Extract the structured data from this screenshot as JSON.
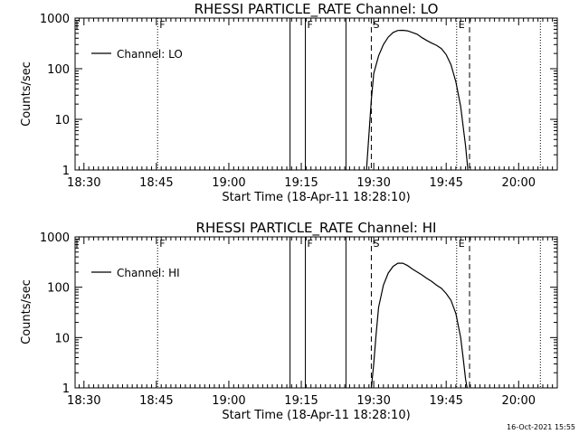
{
  "footer": {
    "date_stamp": "16-Oct-2021 15:55"
  },
  "chart_data": [
    {
      "type": "line",
      "title": "RHESSI PARTICLE_RATE Channel: LO",
      "xlabel": "Start Time (18-Apr-11 18:28:10)",
      "ylabel": "Counts/sec",
      "y_scale": "log",
      "ylim": [
        1,
        1000
      ],
      "xlim": [
        "18:28:10",
        "20:08:00"
      ],
      "x_ticks": [
        "18:30",
        "18:45",
        "19:00",
        "19:15",
        "19:30",
        "19:45",
        "20:00"
      ],
      "y_ticks": [
        "1",
        "10",
        "100",
        "1000"
      ],
      "legend": {
        "placement": "top-left",
        "entries": [
          "Channel: LO"
        ]
      },
      "series": [
        {
          "name": "Channel: LO",
          "x": [
            "19:28:30",
            "19:29:00",
            "19:29:30",
            "19:30:00",
            "19:31:00",
            "19:32:00",
            "19:33:00",
            "19:34:00",
            "19:35:00",
            "19:36:00",
            "19:37:00",
            "19:38:00",
            "19:39:00",
            "19:40:00",
            "19:41:00",
            "19:42:00",
            "19:43:00",
            "19:44:00",
            "19:45:00",
            "19:46:00",
            "19:47:00",
            "19:48:00",
            "19:49:00",
            "19:49:30"
          ],
          "y": [
            1,
            5,
            25,
            80,
            180,
            300,
            420,
            520,
            570,
            575,
            560,
            520,
            480,
            410,
            360,
            320,
            290,
            250,
            190,
            120,
            55,
            18,
            3,
            1
          ]
        }
      ],
      "annotations": [
        {
          "label": "F",
          "time": "18:45:15",
          "style": "dotted"
        },
        {
          "label": "",
          "time": "19:12:40",
          "style": "solid"
        },
        {
          "label": "F",
          "time": "19:15:50",
          "style": "solid"
        },
        {
          "label": "",
          "time": "19:24:15",
          "style": "solid"
        },
        {
          "label": "S",
          "time": "19:29:30",
          "style": "dashed"
        },
        {
          "label": "E",
          "time": "19:47:10",
          "style": "dotted"
        },
        {
          "label": "",
          "time": "19:49:50",
          "style": "dashed"
        },
        {
          "label": "",
          "time": "20:04:30",
          "style": "dotted"
        }
      ]
    },
    {
      "type": "line",
      "title": "RHESSI PARTICLE_RATE Channel: HI",
      "xlabel": "Start Time (18-Apr-11 18:28:10)",
      "ylabel": "Counts/sec",
      "y_scale": "log",
      "ylim": [
        1,
        1000
      ],
      "xlim": [
        "18:28:10",
        "20:08:00"
      ],
      "x_ticks": [
        "18:30",
        "18:45",
        "19:00",
        "19:15",
        "19:30",
        "19:45",
        "20:00"
      ],
      "y_ticks": [
        "1",
        "10",
        "100",
        "1000"
      ],
      "legend": {
        "placement": "top-left",
        "entries": [
          "Channel: HI"
        ]
      },
      "series": [
        {
          "name": "Channel: HI",
          "x": [
            "19:29:30",
            "19:30:00",
            "19:30:30",
            "19:31:00",
            "19:32:00",
            "19:33:00",
            "19:34:00",
            "19:35:00",
            "19:36:00",
            "19:37:00",
            "19:38:00",
            "19:39:00",
            "19:40:00",
            "19:41:00",
            "19:42:00",
            "19:43:00",
            "19:44:00",
            "19:45:00",
            "19:46:00",
            "19:47:00",
            "19:48:00",
            "19:48:30",
            "19:49:00",
            "19:49:20"
          ],
          "y": [
            1,
            3,
            12,
            40,
            110,
            190,
            260,
            300,
            300,
            270,
            230,
            200,
            175,
            150,
            130,
            110,
            95,
            75,
            55,
            30,
            10,
            4,
            1.5,
            1
          ]
        }
      ],
      "annotations": [
        {
          "label": "F",
          "time": "18:45:15",
          "style": "dotted"
        },
        {
          "label": "",
          "time": "19:12:40",
          "style": "solid"
        },
        {
          "label": "F",
          "time": "19:15:50",
          "style": "solid"
        },
        {
          "label": "",
          "time": "19:24:15",
          "style": "solid"
        },
        {
          "label": "S",
          "time": "19:29:30",
          "style": "dashed"
        },
        {
          "label": "E",
          "time": "19:47:10",
          "style": "dotted"
        },
        {
          "label": "",
          "time": "19:49:50",
          "style": "dashed"
        },
        {
          "label": "",
          "time": "20:04:30",
          "style": "dotted"
        }
      ]
    }
  ]
}
